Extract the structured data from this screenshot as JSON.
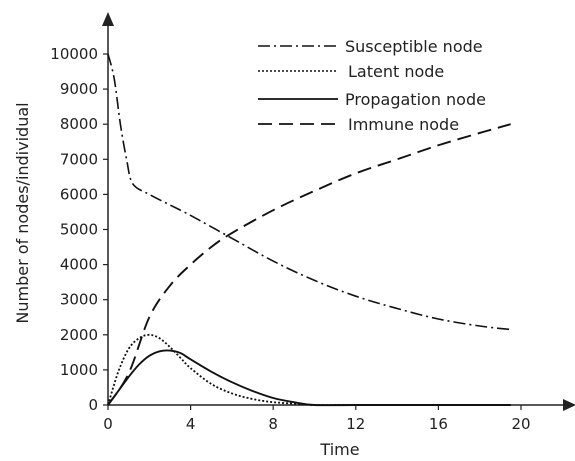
{
  "chart_data": {
    "type": "line",
    "xlabel": "Time",
    "ylabel": "Number of nodes/individual",
    "xlim": [
      0,
      20
    ],
    "ylim": [
      0,
      10000
    ],
    "x_ticks": [
      "0",
      "4",
      "8",
      "12",
      "16",
      "20"
    ],
    "y_ticks": [
      "0",
      "1000",
      "2000",
      "3000",
      "4000",
      "5000",
      "6000",
      "7000",
      "8000",
      "9000",
      "10000"
    ],
    "grid": false,
    "legend_position": "top-right",
    "series": [
      {
        "name": "Susceptible node",
        "style": "dashdot",
        "x": [
          0,
          0.3,
          0.6,
          0.9,
          1.2,
          2,
          3,
          4,
          6,
          8,
          10,
          12,
          14,
          16,
          18,
          19.5
        ],
        "y": [
          10000,
          9300,
          8000,
          7000,
          6300,
          6000,
          5700,
          5400,
          4750,
          4100,
          3550,
          3100,
          2750,
          2450,
          2250,
          2150
        ]
      },
      {
        "name": "Latent node",
        "style": "dotted",
        "x": [
          0,
          0.5,
          1,
          1.5,
          2,
          2.5,
          3,
          3.5,
          4,
          5,
          6,
          7,
          8,
          9,
          10,
          12,
          16,
          19.5
        ],
        "y": [
          0,
          950,
          1600,
          1900,
          2000,
          1900,
          1650,
          1350,
          1050,
          600,
          330,
          170,
          80,
          40,
          0,
          0,
          0,
          0
        ]
      },
      {
        "name": "Propagation node",
        "style": "solid",
        "x": [
          0,
          0.5,
          1,
          1.5,
          2,
          2.5,
          3,
          3.5,
          4,
          5,
          6,
          7,
          8,
          9,
          10,
          12,
          16,
          19.5
        ],
        "y": [
          0,
          400,
          800,
          1150,
          1400,
          1530,
          1550,
          1480,
          1300,
          950,
          650,
          400,
          200,
          80,
          0,
          0,
          0,
          0
        ]
      },
      {
        "name": "Immune node",
        "style": "dashed",
        "x": [
          0,
          1,
          2,
          3,
          4,
          5,
          6,
          8,
          10,
          12,
          14,
          16,
          18,
          19.5
        ],
        "y": [
          0,
          900,
          2500,
          3400,
          4000,
          4500,
          4900,
          5550,
          6100,
          6600,
          7000,
          7400,
          7750,
          8000
        ]
      }
    ]
  }
}
